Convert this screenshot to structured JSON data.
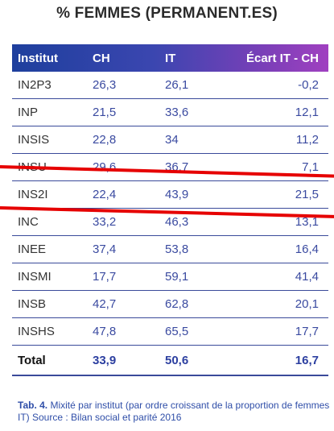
{
  "title": "% FEMMES (PERMANENT.ES)",
  "headers": [
    "Institut",
    "CH",
    "IT",
    "Écart IT - CH"
  ],
  "rows": [
    [
      "IN2P3",
      "26,3",
      "26,1",
      "-0,2"
    ],
    [
      "INP",
      "21,5",
      "33,6",
      "12,1"
    ],
    [
      "INSIS",
      "22,8",
      "34",
      "11,2"
    ],
    [
      "INSU",
      "29,6",
      "36,7",
      "7,1"
    ],
    [
      "INS2I",
      "22,4",
      "43,9",
      "21,5"
    ],
    [
      "INC",
      "33,2",
      "46,3",
      "13,1"
    ],
    [
      "INEE",
      "37,4",
      "53,8",
      "16,4"
    ],
    [
      "INSMI",
      "17,7",
      "59,1",
      "41,4"
    ],
    [
      "INSB",
      "42,7",
      "62,8",
      "20,1"
    ],
    [
      "INSHS",
      "47,8",
      "65,5",
      "17,7"
    ]
  ],
  "total": [
    "Total",
    "33,9",
    "50,6",
    "16,7"
  ],
  "caption": {
    "label": "Tab. 4.",
    "text": "Mixité par institut (par ordre croissant de la proportion de femmes IT) Source : Bilan social et parité 2016"
  },
  "colors": {
    "header_start": "#1e3f9d",
    "header_end": "#a040c0",
    "value_text": "#3a4aa0",
    "strike": "#e60000"
  }
}
